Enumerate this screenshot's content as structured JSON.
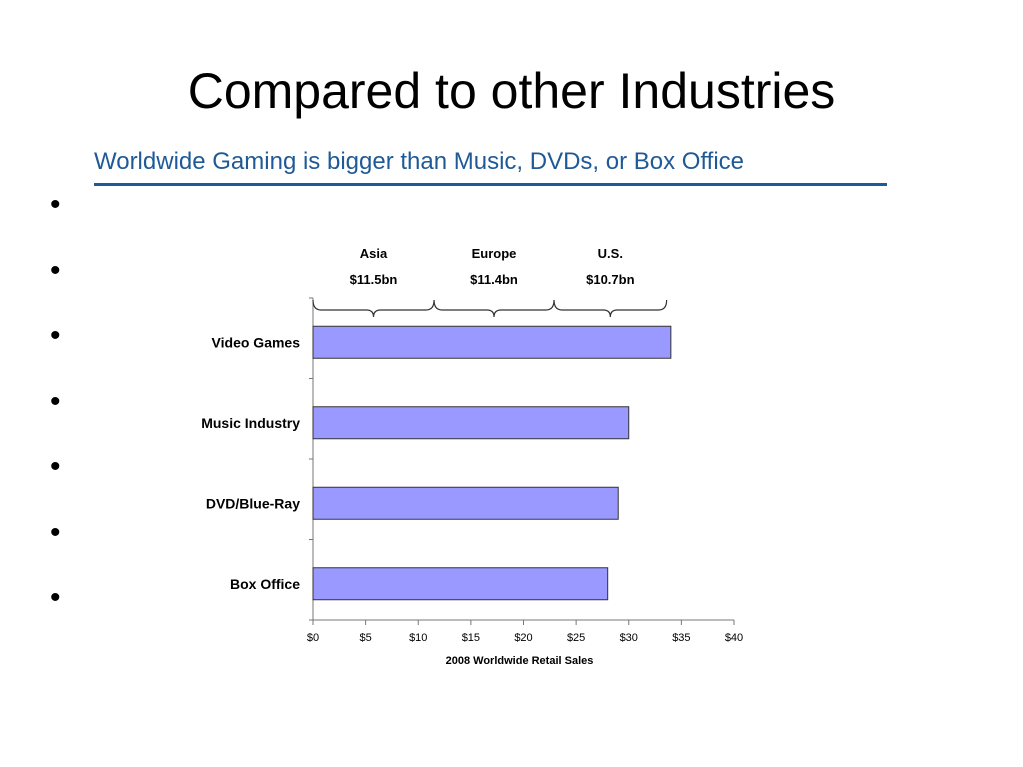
{
  "slide": {
    "title": "Compared to other Industries",
    "subtitle": "Worldwide Gaming is bigger than Music, DVDs, or Box Office",
    "bullet_glyph": "•",
    "bullet_count": 7
  },
  "chart_data": {
    "type": "bar",
    "orientation": "horizontal",
    "categories": [
      "Video Games",
      "Music Industry",
      "DVD/Blue-Ray",
      "Box Office"
    ],
    "values": [
      34,
      30,
      29,
      28
    ],
    "xlabel": "2008 Worldwide Retail Sales",
    "xlim": [
      0,
      40
    ],
    "x_ticks": [
      0,
      5,
      10,
      15,
      20,
      25,
      30,
      35,
      40
    ],
    "x_tick_labels": [
      "$0",
      "$5",
      "$10",
      "$15",
      "$20",
      "$25",
      "$30",
      "$35",
      "$40"
    ],
    "bar_color": "#9999ff",
    "grid": false,
    "annotations": [
      {
        "region": "Asia",
        "value_label": "$11.5bn",
        "range": [
          0,
          11.5
        ]
      },
      {
        "region": "Europe",
        "value_label": "$11.4bn",
        "range": [
          11.5,
          22.9
        ]
      },
      {
        "region": "U.S.",
        "value_label": "$10.7bn",
        "range": [
          22.9,
          33.6
        ]
      }
    ]
  }
}
